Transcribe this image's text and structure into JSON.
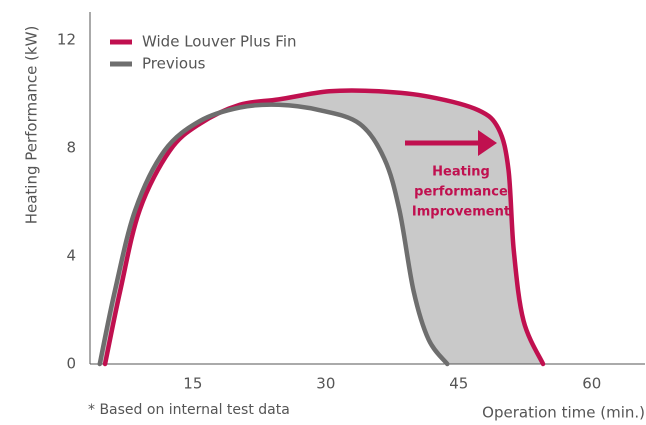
{
  "chart_data": {
    "type": "line",
    "xlabel": "Operation time (min.)",
    "ylabel": "Heating Performance (kW)",
    "footnote": "* Based on internal test data",
    "annotation": [
      "Heating",
      "performance",
      "Improvement"
    ],
    "annotation_color": "#c0104f",
    "fill_between_color": "#c9c9c9",
    "legend": "upper left",
    "xlim": [
      3.4,
      66
    ],
    "ylim": [
      0,
      13
    ],
    "xticks": [
      15,
      30,
      45,
      60
    ],
    "yticks": [
      0,
      4,
      8,
      12
    ],
    "series": [
      {
        "name": "Wide Louver Plus Fin",
        "color": "#c0104f",
        "x": [
          5.1,
          6.8,
          9.0,
          12.4,
          15.8,
          20.3,
          24.7,
          30.4,
          36,
          41.6,
          47.2,
          49.5,
          50.6,
          51.2,
          52.3,
          54.5
        ],
        "values": [
          0,
          2.7,
          5.7,
          7.9,
          8.9,
          9.6,
          9.8,
          10.1,
          10.1,
          9.9,
          9.4,
          8.7,
          7.2,
          4.2,
          1.6,
          0
        ]
      },
      {
        "name": "Previous",
        "color": "#6e6e6e",
        "x": [
          4.5,
          6.2,
          8.5,
          11.8,
          15.8,
          20.3,
          24.7,
          29.3,
          33.8,
          36.6,
          38.3,
          39.9,
          41.6,
          43.7
        ],
        "values": [
          0,
          2.7,
          5.7,
          7.9,
          9.0,
          9.5,
          9.6,
          9.4,
          8.9,
          7.6,
          5.7,
          2.7,
          0.9,
          0
        ]
      }
    ]
  }
}
